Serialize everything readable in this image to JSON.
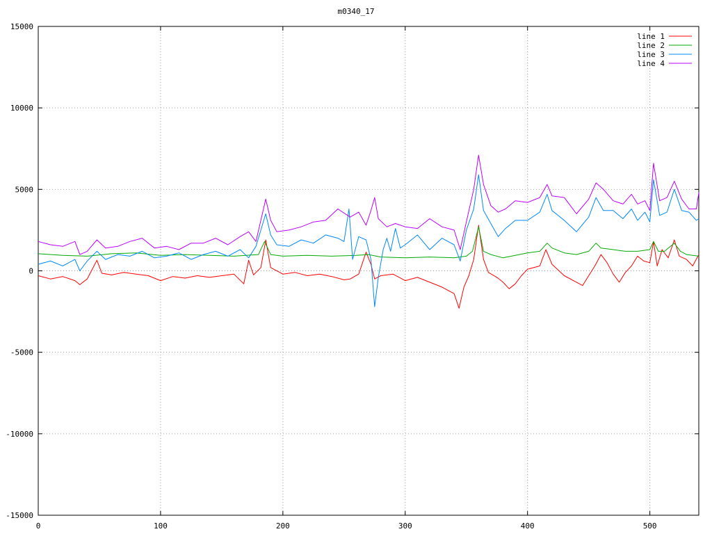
{
  "chart_data": {
    "type": "line",
    "title": "m0340_17",
    "xlabel": "",
    "ylabel": "",
    "xlim": [
      0,
      540
    ],
    "ylim": [
      -15000,
      15000
    ],
    "x_ticks": [
      0,
      100,
      200,
      300,
      400,
      500
    ],
    "y_ticks": [
      15000,
      10000,
      5000,
      0,
      -5000,
      -10000,
      -15000
    ],
    "grid": true,
    "legend_position": "top-right",
    "series": [
      {
        "name": "line 1",
        "color": "#ff0000",
        "points": [
          [
            0,
            -300
          ],
          [
            10,
            -500
          ],
          [
            20,
            -350
          ],
          [
            30,
            -600
          ],
          [
            34,
            -850
          ],
          [
            40,
            -500
          ],
          [
            48,
            650
          ],
          [
            52,
            -150
          ],
          [
            60,
            -250
          ],
          [
            70,
            -100
          ],
          [
            80,
            -200
          ],
          [
            90,
            -300
          ],
          [
            100,
            -600
          ],
          [
            110,
            -350
          ],
          [
            120,
            -450
          ],
          [
            130,
            -300
          ],
          [
            140,
            -400
          ],
          [
            150,
            -300
          ],
          [
            160,
            -200
          ],
          [
            168,
            -800
          ],
          [
            172,
            650
          ],
          [
            176,
            -250
          ],
          [
            182,
            200
          ],
          [
            186,
            1900
          ],
          [
            190,
            200
          ],
          [
            200,
            -200
          ],
          [
            210,
            -100
          ],
          [
            220,
            -300
          ],
          [
            230,
            -200
          ],
          [
            240,
            -350
          ],
          [
            250,
            -550
          ],
          [
            255,
            -500
          ],
          [
            262,
            -200
          ],
          [
            268,
            1150
          ],
          [
            272,
            400
          ],
          [
            275,
            -500
          ],
          [
            280,
            -300
          ],
          [
            290,
            -200
          ],
          [
            300,
            -600
          ],
          [
            310,
            -400
          ],
          [
            320,
            -700
          ],
          [
            330,
            -1000
          ],
          [
            340,
            -1400
          ],
          [
            344,
            -2300
          ],
          [
            348,
            -1000
          ],
          [
            352,
            -300
          ],
          [
            356,
            700
          ],
          [
            360,
            2800
          ],
          [
            364,
            700
          ],
          [
            368,
            -100
          ],
          [
            375,
            -400
          ],
          [
            380,
            -700
          ],
          [
            385,
            -1100
          ],
          [
            390,
            -800
          ],
          [
            395,
            -300
          ],
          [
            400,
            100
          ],
          [
            410,
            300
          ],
          [
            415,
            1300
          ],
          [
            420,
            400
          ],
          [
            430,
            -300
          ],
          [
            440,
            -700
          ],
          [
            445,
            -900
          ],
          [
            450,
            -300
          ],
          [
            455,
            300
          ],
          [
            460,
            1000
          ],
          [
            465,
            500
          ],
          [
            470,
            -200
          ],
          [
            475,
            -700
          ],
          [
            480,
            -100
          ],
          [
            485,
            300
          ],
          [
            490,
            900
          ],
          [
            495,
            600
          ],
          [
            500,
            500
          ],
          [
            503,
            1800
          ],
          [
            506,
            300
          ],
          [
            510,
            1300
          ],
          [
            515,
            800
          ],
          [
            520,
            1900
          ],
          [
            524,
            900
          ],
          [
            530,
            700
          ],
          [
            535,
            300
          ],
          [
            540,
            1000
          ]
        ]
      },
      {
        "name": "line 2",
        "color": "#00aa00",
        "points": [
          [
            0,
            1050
          ],
          [
            20,
            950
          ],
          [
            40,
            900
          ],
          [
            60,
            1050
          ],
          [
            80,
            1100
          ],
          [
            100,
            950
          ],
          [
            120,
            1000
          ],
          [
            140,
            950
          ],
          [
            160,
            900
          ],
          [
            180,
            1000
          ],
          [
            185,
            1800
          ],
          [
            190,
            1000
          ],
          [
            200,
            900
          ],
          [
            220,
            950
          ],
          [
            240,
            900
          ],
          [
            260,
            950
          ],
          [
            270,
            1000
          ],
          [
            280,
            850
          ],
          [
            300,
            800
          ],
          [
            320,
            850
          ],
          [
            340,
            800
          ],
          [
            350,
            900
          ],
          [
            355,
            1200
          ],
          [
            360,
            2700
          ],
          [
            364,
            1200
          ],
          [
            370,
            1000
          ],
          [
            380,
            800
          ],
          [
            390,
            950
          ],
          [
            400,
            1100
          ],
          [
            410,
            1200
          ],
          [
            416,
            1700
          ],
          [
            420,
            1400
          ],
          [
            430,
            1100
          ],
          [
            440,
            1000
          ],
          [
            450,
            1200
          ],
          [
            456,
            1700
          ],
          [
            460,
            1400
          ],
          [
            470,
            1300
          ],
          [
            480,
            1200
          ],
          [
            490,
            1200
          ],
          [
            500,
            1300
          ],
          [
            503,
            1800
          ],
          [
            507,
            1200
          ],
          [
            512,
            1200
          ],
          [
            520,
            1700
          ],
          [
            525,
            1200
          ],
          [
            530,
            1000
          ],
          [
            540,
            900
          ]
        ]
      },
      {
        "name": "line 3",
        "color": "#0088ff",
        "points": [
          [
            0,
            400
          ],
          [
            10,
            600
          ],
          [
            20,
            300
          ],
          [
            30,
            700
          ],
          [
            34,
            0
          ],
          [
            40,
            600
          ],
          [
            48,
            1200
          ],
          [
            55,
            700
          ],
          [
            65,
            1000
          ],
          [
            75,
            900
          ],
          [
            85,
            1200
          ],
          [
            95,
            800
          ],
          [
            105,
            900
          ],
          [
            115,
            1100
          ],
          [
            125,
            700
          ],
          [
            135,
            1000
          ],
          [
            145,
            1200
          ],
          [
            155,
            900
          ],
          [
            165,
            1300
          ],
          [
            172,
            800
          ],
          [
            178,
            1500
          ],
          [
            186,
            3500
          ],
          [
            190,
            2200
          ],
          [
            195,
            1600
          ],
          [
            205,
            1500
          ],
          [
            215,
            1900
          ],
          [
            225,
            1700
          ],
          [
            235,
            2200
          ],
          [
            245,
            2000
          ],
          [
            250,
            1800
          ],
          [
            254,
            3800
          ],
          [
            257,
            700
          ],
          [
            262,
            2100
          ],
          [
            268,
            1900
          ],
          [
            272,
            700
          ],
          [
            275,
            -2200
          ],
          [
            278,
            -400
          ],
          [
            282,
            1300
          ],
          [
            285,
            2000
          ],
          [
            288,
            1200
          ],
          [
            292,
            2600
          ],
          [
            296,
            1400
          ],
          [
            300,
            1600
          ],
          [
            310,
            2200
          ],
          [
            320,
            1300
          ],
          [
            330,
            2000
          ],
          [
            340,
            1600
          ],
          [
            345,
            600
          ],
          [
            350,
            2500
          ],
          [
            356,
            3800
          ],
          [
            360,
            5900
          ],
          [
            364,
            3700
          ],
          [
            370,
            2900
          ],
          [
            376,
            2100
          ],
          [
            382,
            2600
          ],
          [
            390,
            3100
          ],
          [
            400,
            3100
          ],
          [
            410,
            3600
          ],
          [
            416,
            4700
          ],
          [
            420,
            3700
          ],
          [
            430,
            3100
          ],
          [
            440,
            2400
          ],
          [
            450,
            3300
          ],
          [
            456,
            4500
          ],
          [
            462,
            3700
          ],
          [
            470,
            3700
          ],
          [
            478,
            3200
          ],
          [
            485,
            3800
          ],
          [
            490,
            3100
          ],
          [
            496,
            3600
          ],
          [
            500,
            3000
          ],
          [
            503,
            5600
          ],
          [
            508,
            3400
          ],
          [
            514,
            3600
          ],
          [
            520,
            5000
          ],
          [
            526,
            3700
          ],
          [
            532,
            3600
          ],
          [
            538,
            3100
          ],
          [
            540,
            3200
          ]
        ]
      },
      {
        "name": "line 4",
        "color": "#bb00ff",
        "points": [
          [
            0,
            1800
          ],
          [
            10,
            1600
          ],
          [
            20,
            1500
          ],
          [
            30,
            1800
          ],
          [
            34,
            1000
          ],
          [
            40,
            1200
          ],
          [
            48,
            1900
          ],
          [
            55,
            1400
          ],
          [
            65,
            1500
          ],
          [
            75,
            1800
          ],
          [
            85,
            2000
          ],
          [
            95,
            1400
          ],
          [
            105,
            1500
          ],
          [
            115,
            1300
          ],
          [
            125,
            1700
          ],
          [
            135,
            1700
          ],
          [
            145,
            2000
          ],
          [
            155,
            1600
          ],
          [
            165,
            2100
          ],
          [
            172,
            2400
          ],
          [
            178,
            1800
          ],
          [
            186,
            4400
          ],
          [
            190,
            3100
          ],
          [
            195,
            2400
          ],
          [
            205,
            2500
          ],
          [
            215,
            2700
          ],
          [
            225,
            3000
          ],
          [
            235,
            3100
          ],
          [
            245,
            3800
          ],
          [
            255,
            3300
          ],
          [
            262,
            3600
          ],
          [
            268,
            2800
          ],
          [
            272,
            3700
          ],
          [
            275,
            4500
          ],
          [
            278,
            3200
          ],
          [
            285,
            2700
          ],
          [
            292,
            2900
          ],
          [
            300,
            2700
          ],
          [
            310,
            2600
          ],
          [
            320,
            3200
          ],
          [
            330,
            2700
          ],
          [
            340,
            2500
          ],
          [
            345,
            1300
          ],
          [
            350,
            3000
          ],
          [
            356,
            5000
          ],
          [
            360,
            7100
          ],
          [
            364,
            5300
          ],
          [
            370,
            4000
          ],
          [
            376,
            3600
          ],
          [
            382,
            3800
          ],
          [
            390,
            4300
          ],
          [
            400,
            4200
          ],
          [
            410,
            4500
          ],
          [
            416,
            5300
          ],
          [
            420,
            4600
          ],
          [
            430,
            4500
          ],
          [
            440,
            3500
          ],
          [
            450,
            4400
          ],
          [
            456,
            5400
          ],
          [
            462,
            5000
          ],
          [
            470,
            4300
          ],
          [
            478,
            4100
          ],
          [
            485,
            4700
          ],
          [
            490,
            4100
          ],
          [
            496,
            4300
          ],
          [
            500,
            3700
          ],
          [
            503,
            6600
          ],
          [
            508,
            4300
          ],
          [
            514,
            4500
          ],
          [
            520,
            5500
          ],
          [
            526,
            4400
          ],
          [
            532,
            3800
          ],
          [
            538,
            3800
          ],
          [
            540,
            4800
          ]
        ]
      }
    ]
  }
}
